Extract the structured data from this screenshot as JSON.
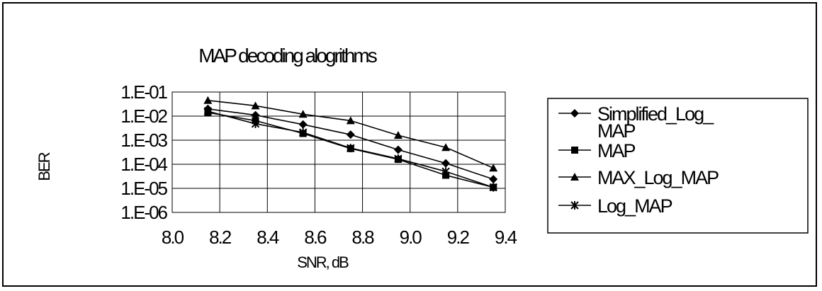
{
  "chart_data": {
    "type": "line",
    "title": "MAP decoding alogrithms",
    "xlabel": "SNR, dB",
    "ylabel": "BER",
    "x": [
      8.15,
      8.35,
      8.55,
      8.75,
      8.95,
      9.15,
      9.35
    ],
    "xlim": [
      8.0,
      9.4
    ],
    "ylim": [
      1e-06,
      0.1
    ],
    "yscale": "log",
    "x_tick_labels": [
      "8.0",
      "8.2",
      "8.4",
      "8.6",
      "8.8",
      "9.0",
      "9.2",
      "9.4"
    ],
    "y_tick_labels": [
      "1.E-01",
      "1.E-02",
      "1.E-03",
      "1.E-04",
      "1.E-05",
      "1.E-06"
    ],
    "grid": true,
    "legend_position": "right",
    "series": [
      {
        "name": "Simplified_Log_MAP",
        "marker": "diamond",
        "values": [
          0.02,
          0.011,
          0.0045,
          0.0017,
          0.0004,
          0.00011,
          2.4e-05
        ]
      },
      {
        "name": "MAP",
        "marker": "square",
        "values": [
          0.014,
          0.0065,
          0.0019,
          0.00045,
          0.00016,
          3.5e-05,
          1.1e-05
        ]
      },
      {
        "name": "MAX_Log_MAP",
        "marker": "triangle",
        "values": [
          0.045,
          0.027,
          0.012,
          0.0065,
          0.0016,
          0.0005,
          7e-05
        ]
      },
      {
        "name": "Log_MAP",
        "marker": "star",
        "values": [
          0.016,
          0.0048,
          0.0021,
          0.00047,
          0.00017,
          5e-05,
          1.1e-05
        ]
      }
    ],
    "legend_lines": [
      [
        "Simplified_Log_",
        "MAP"
      ],
      [
        "MAP"
      ],
      [
        "MAX_Log_MAP"
      ],
      [
        "Log_MAP"
      ]
    ]
  }
}
